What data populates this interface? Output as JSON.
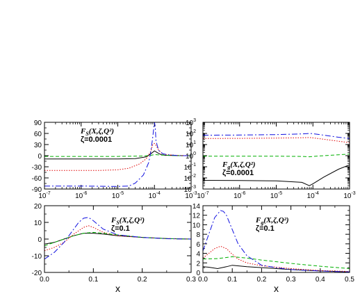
{
  "colors": {
    "black": "#000000",
    "red": "#e00000",
    "green": "#00b000",
    "blue": "#1010e0"
  },
  "chart_data": [
    {
      "type": "line",
      "xscale": "log",
      "xlim": [
        1e-07,
        0.001
      ],
      "ylim": [
        -90,
        90
      ],
      "xticks": [
        "10^-7",
        "10^-6",
        "10^-5",
        "10^-4",
        "10^-3"
      ],
      "yticks": [
        "90",
        "60",
        "30",
        "0",
        "-30",
        "-60",
        "-90"
      ],
      "xlabel": "",
      "annotation": {
        "line1": "F_S(X,ζ,Q²)",
        "line2": "ζ=0.0001"
      },
      "series": [
        {
          "color": "black",
          "style": "solid",
          "x": [
            1e-07,
            1e-06,
            1e-05,
            3e-05,
            6e-05,
            8e-05,
            0.0001,
            0.00012,
            0.00015,
            0.0002,
            0.0005,
            0.001
          ],
          "y": [
            -9,
            -9,
            -9,
            -8,
            -3,
            5,
            13,
            8,
            3,
            1,
            0,
            0
          ]
        },
        {
          "color": "red",
          "style": "dotted",
          "x": [
            1e-07,
            1e-06,
            3e-06,
            1e-05,
            2e-05,
            4e-05,
            6e-05,
            8e-05,
            9e-05,
            0.0001,
            0.00011,
            0.00013,
            0.00016,
            0.0002,
            0.0004,
            0.001
          ],
          "y": [
            -40,
            -40,
            -40,
            -38,
            -34,
            -22,
            -8,
            12,
            30,
            33,
            28,
            15,
            6,
            3,
            1,
            0
          ]
        },
        {
          "color": "green",
          "style": "dashed",
          "x": [
            1e-07,
            1e-06,
            1e-05,
            5e-05,
            8e-05,
            0.0001,
            0.00013,
            0.0002,
            0.0005,
            0.001
          ],
          "y": [
            -2,
            -2,
            -2,
            -1,
            1,
            3,
            2,
            1,
            0,
            0
          ]
        },
        {
          "color": "blue",
          "style": "dashdot",
          "x": [
            1e-07,
            1e-06,
            1e-05,
            2e-05,
            3e-05,
            5e-05,
            7e-05,
            8e-05,
            9e-05,
            9.7e-05,
            0.0001,
            0.000105,
            0.00011,
            0.00013,
            0.00017,
            0.00025,
            0.0005,
            0.001
          ],
          "y": [
            -82,
            -82,
            -83,
            -82,
            -74,
            -52,
            -18,
            12,
            50,
            80,
            90,
            78,
            40,
            14,
            5,
            2,
            0,
            0
          ]
        }
      ]
    },
    {
      "type": "line",
      "xscale": "log",
      "yscale": "log",
      "xlim": [
        1e-07,
        0.001
      ],
      "ylim": [
        0.001,
        1000.0
      ],
      "xticks": [
        "10^-7",
        "10^-6",
        "10^-5",
        "10^-4",
        "10^-3"
      ],
      "yticks": [
        "10^3",
        "10^2",
        "10^1",
        "10^0",
        "10^-1",
        "10^-2",
        "10^-3"
      ],
      "xlabel": "",
      "annotation": {
        "line1": "F_g(X,ζ,Q²)",
        "line2": "ζ=0.0001"
      },
      "series": [
        {
          "color": "black",
          "style": "solid",
          "x": [
            1e-07,
            1e-06,
            1e-05,
            5e-05,
            8e-05,
            0.0001,
            0.0002,
            0.0005,
            0.001
          ],
          "y": [
            0.006,
            0.0058,
            0.0055,
            0.004,
            0.002,
            0.003,
            0.012,
            0.06,
            0.15
          ]
        },
        {
          "color": "red",
          "style": "dotted",
          "x": [
            1e-07,
            1e-06,
            1e-05,
            5e-05,
            8e-05,
            0.0001,
            0.0002,
            0.0005,
            0.001
          ],
          "y": [
            35,
            36,
            38,
            41,
            43,
            40,
            30,
            20,
            15
          ]
        },
        {
          "color": "green",
          "style": "dashed",
          "x": [
            1e-07,
            1e-06,
            1e-05,
            5e-05,
            8e-05,
            0.0001,
            0.0002,
            0.0005,
            0.001
          ],
          "y": [
            0.9,
            0.9,
            0.9,
            0.85,
            0.8,
            0.85,
            1.0,
            1.2,
            1.4
          ]
        },
        {
          "color": "blue",
          "style": "dashdot",
          "x": [
            1e-07,
            1e-06,
            1e-05,
            5e-05,
            8e-05,
            0.0001,
            0.0002,
            0.0005,
            0.001
          ],
          "y": [
            70,
            72,
            78,
            90,
            100,
            95,
            70,
            45,
            35
          ]
        }
      ]
    },
    {
      "type": "line",
      "xlim": [
        0,
        0.3
      ],
      "ylim": [
        -20,
        20
      ],
      "xticks": [
        "0.0",
        "0.1",
        "0.2",
        "0.3"
      ],
      "yticks": [
        "20",
        "10",
        "0",
        "-10",
        "-20"
      ],
      "xlabel": "x",
      "annotation": {
        "line1": "F_S(X,ζ,Q²)",
        "line2": "ζ=0.1"
      },
      "series": [
        {
          "color": "black",
          "style": "solid",
          "x": [
            0,
            0.02,
            0.04,
            0.06,
            0.08,
            0.1,
            0.12,
            0.15,
            0.2,
            0.25,
            0.3
          ],
          "y": [
            -3,
            -2,
            0,
            2,
            3.5,
            3.5,
            3,
            2,
            1,
            0.3,
            0
          ]
        },
        {
          "color": "red",
          "style": "dotted",
          "x": [
            0,
            0.02,
            0.04,
            0.06,
            0.08,
            0.09,
            0.1,
            0.12,
            0.15,
            0.2,
            0.25,
            0.3
          ],
          "y": [
            -7,
            -5,
            -2,
            3,
            7,
            8,
            7,
            4,
            2,
            1,
            0.3,
            0
          ]
        },
        {
          "color": "green",
          "style": "dashed",
          "x": [
            0,
            0.02,
            0.04,
            0.06,
            0.08,
            0.1,
            0.12,
            0.15,
            0.2,
            0.25,
            0.3
          ],
          "y": [
            -4,
            -2,
            0,
            2,
            3.5,
            4,
            3.5,
            2.5,
            1,
            0.3,
            0
          ]
        },
        {
          "color": "blue",
          "style": "dashdot",
          "x": [
            0,
            0.02,
            0.04,
            0.06,
            0.07,
            0.08,
            0.09,
            0.1,
            0.12,
            0.15,
            0.2,
            0.25,
            0.3
          ],
          "y": [
            -12,
            -8,
            -2,
            6,
            10,
            12.5,
            13,
            11,
            6,
            2.5,
            1,
            0.2,
            0
          ]
        }
      ]
    },
    {
      "type": "line",
      "xlim": [
        0,
        0.5
      ],
      "ylim": [
        0,
        14
      ],
      "xticks": [
        "0.0",
        "0.1",
        "0.2",
        "0.3",
        "0.4",
        "0.5"
      ],
      "yticks": [
        "14",
        "12",
        "10",
        "8",
        "6",
        "4",
        "2",
        "0"
      ],
      "xlabel": "x",
      "annotation": {
        "line1": "F_g(X,ζ,Q²)",
        "line2": "ζ=0.1"
      },
      "series": [
        {
          "color": "black",
          "style": "solid",
          "x": [
            0,
            0.02,
            0.05,
            0.08,
            0.1,
            0.15,
            0.2,
            0.3,
            0.4,
            0.5
          ],
          "y": [
            1.2,
            1.1,
            0.8,
            1.2,
            1.5,
            1.2,
            1.0,
            0.6,
            0.3,
            0.1
          ]
        },
        {
          "color": "red",
          "style": "dotted",
          "x": [
            0,
            0.02,
            0.04,
            0.06,
            0.08,
            0.1,
            0.12,
            0.15,
            0.2,
            0.3,
            0.4,
            0.5
          ],
          "y": [
            3,
            4,
            5,
            5.5,
            5,
            3.8,
            2.8,
            2,
            1.4,
            0.8,
            0.4,
            0.2
          ]
        },
        {
          "color": "green",
          "style": "dashed",
          "x": [
            0,
            0.05,
            0.1,
            0.15,
            0.2,
            0.3,
            0.4,
            0.5
          ],
          "y": [
            2.8,
            2.9,
            3.3,
            3.0,
            2.6,
            1.9,
            1.3,
            0.8
          ]
        },
        {
          "color": "blue",
          "style": "dashdot",
          "x": [
            0,
            0.02,
            0.04,
            0.06,
            0.07,
            0.08,
            0.1,
            0.12,
            0.15,
            0.2,
            0.25,
            0.3,
            0.4,
            0.5
          ],
          "y": [
            4.5,
            8,
            11.5,
            13,
            12.8,
            12,
            9,
            6,
            3.5,
            1.5,
            1,
            0.6,
            0.3,
            0.1
          ]
        }
      ]
    }
  ]
}
